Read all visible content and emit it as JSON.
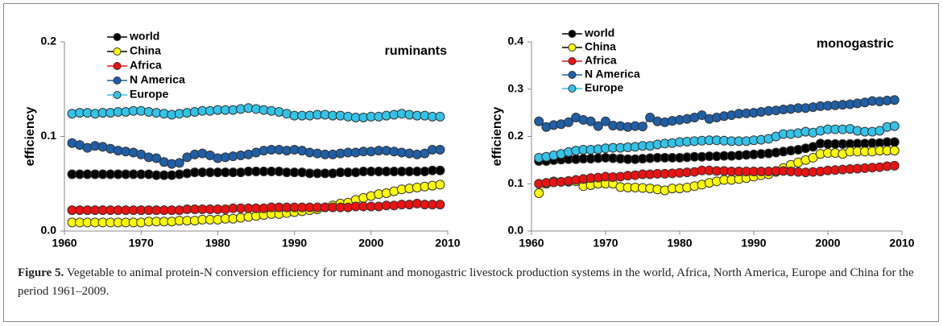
{
  "chart_data": [
    {
      "type": "line",
      "title": "ruminants",
      "ylabel": "efficiency",
      "x": [
        1961,
        1962,
        1963,
        1964,
        1965,
        1966,
        1967,
        1968,
        1969,
        1970,
        1971,
        1972,
        1973,
        1974,
        1975,
        1976,
        1977,
        1978,
        1979,
        1980,
        1981,
        1982,
        1983,
        1984,
        1985,
        1986,
        1987,
        1988,
        1989,
        1990,
        1991,
        1992,
        1993,
        1994,
        1995,
        1996,
        1997,
        1998,
        1999,
        2000,
        2001,
        2002,
        2003,
        2004,
        2005,
        2006,
        2007,
        2008,
        2009
      ],
      "xlim": [
        1960,
        2010
      ],
      "xticks": [
        1960,
        1970,
        1980,
        1990,
        2000,
        2010
      ],
      "ylim": [
        0,
        0.2
      ],
      "yticks": [
        {
          "value": 0,
          "label": "0.0"
        },
        {
          "value": 0.1,
          "label": "0.1"
        },
        {
          "value": 0.2,
          "label": "0.2"
        }
      ],
      "legend": "upper left",
      "series": [
        {
          "name": "world",
          "color": "#000000",
          "values": [
            0.06,
            0.06,
            0.06,
            0.06,
            0.06,
            0.06,
            0.06,
            0.06,
            0.06,
            0.06,
            0.06,
            0.059,
            0.059,
            0.059,
            0.06,
            0.061,
            0.062,
            0.062,
            0.062,
            0.062,
            0.062,
            0.062,
            0.062,
            0.063,
            0.063,
            0.063,
            0.063,
            0.063,
            0.062,
            0.062,
            0.062,
            0.061,
            0.061,
            0.061,
            0.061,
            0.062,
            0.062,
            0.062,
            0.063,
            0.063,
            0.063,
            0.063,
            0.063,
            0.063,
            0.063,
            0.063,
            0.063,
            0.064,
            0.064
          ]
        },
        {
          "name": "China",
          "color": "#ffff00",
          "values": [
            0.009,
            0.009,
            0.009,
            0.009,
            0.009,
            0.009,
            0.009,
            0.009,
            0.009,
            0.009,
            0.01,
            0.01,
            0.01,
            0.01,
            0.011,
            0.011,
            0.011,
            0.012,
            0.012,
            0.012,
            0.013,
            0.013,
            0.014,
            0.015,
            0.016,
            0.017,
            0.018,
            0.018,
            0.019,
            0.02,
            0.021,
            0.022,
            0.023,
            0.025,
            0.027,
            0.029,
            0.03,
            0.033,
            0.035,
            0.037,
            0.039,
            0.04,
            0.042,
            0.044,
            0.045,
            0.046,
            0.047,
            0.048,
            0.049
          ]
        },
        {
          "name": "Africa",
          "color": "#ee1111",
          "values": [
            0.022,
            0.022,
            0.022,
            0.022,
            0.022,
            0.022,
            0.022,
            0.022,
            0.022,
            0.022,
            0.022,
            0.022,
            0.022,
            0.022,
            0.022,
            0.023,
            0.023,
            0.023,
            0.023,
            0.023,
            0.023,
            0.024,
            0.024,
            0.024,
            0.024,
            0.024,
            0.025,
            0.025,
            0.025,
            0.025,
            0.025,
            0.025,
            0.025,
            0.025,
            0.025,
            0.025,
            0.025,
            0.026,
            0.026,
            0.026,
            0.026,
            0.027,
            0.027,
            0.028,
            0.028,
            0.029,
            0.028,
            0.028,
            0.028
          ]
        },
        {
          "name": "N America",
          "color": "#1f5fa8",
          "values": [
            0.093,
            0.091,
            0.088,
            0.09,
            0.089,
            0.087,
            0.085,
            0.084,
            0.083,
            0.081,
            0.078,
            0.077,
            0.073,
            0.071,
            0.072,
            0.078,
            0.081,
            0.082,
            0.08,
            0.077,
            0.078,
            0.079,
            0.08,
            0.081,
            0.083,
            0.085,
            0.086,
            0.086,
            0.085,
            0.086,
            0.085,
            0.083,
            0.082,
            0.081,
            0.081,
            0.082,
            0.083,
            0.083,
            0.084,
            0.084,
            0.085,
            0.085,
            0.084,
            0.083,
            0.082,
            0.081,
            0.082,
            0.086,
            0.086
          ]
        },
        {
          "name": "Europe",
          "color": "#33c3e8",
          "values": [
            0.124,
            0.125,
            0.125,
            0.124,
            0.125,
            0.125,
            0.126,
            0.126,
            0.127,
            0.127,
            0.126,
            0.125,
            0.124,
            0.123,
            0.124,
            0.125,
            0.126,
            0.127,
            0.127,
            0.128,
            0.128,
            0.128,
            0.129,
            0.13,
            0.129,
            0.128,
            0.127,
            0.126,
            0.124,
            0.122,
            0.122,
            0.122,
            0.123,
            0.123,
            0.122,
            0.122,
            0.121,
            0.12,
            0.12,
            0.121,
            0.121,
            0.122,
            0.123,
            0.124,
            0.123,
            0.122,
            0.122,
            0.121,
            0.121
          ]
        }
      ]
    },
    {
      "type": "line",
      "title": "monogastric",
      "ylabel": "efficiency",
      "x": [
        1961,
        1962,
        1963,
        1964,
        1965,
        1966,
        1967,
        1968,
        1969,
        1970,
        1971,
        1972,
        1973,
        1974,
        1975,
        1976,
        1977,
        1978,
        1979,
        1980,
        1981,
        1982,
        1983,
        1984,
        1985,
        1986,
        1987,
        1988,
        1989,
        1990,
        1991,
        1992,
        1993,
        1994,
        1995,
        1996,
        1997,
        1998,
        1999,
        2000,
        2001,
        2002,
        2003,
        2004,
        2005,
        2006,
        2007,
        2008,
        2009
      ],
      "xlim": [
        1960,
        2010
      ],
      "xticks": [
        1960,
        1970,
        1980,
        1990,
        2000,
        2010
      ],
      "ylim": [
        0,
        0.4
      ],
      "yticks": [
        {
          "value": 0,
          "label": "0.0"
        },
        {
          "value": 0.1,
          "label": "0.1"
        },
        {
          "value": 0.2,
          "label": "0.2"
        },
        {
          "value": 0.3,
          "label": "0.3"
        },
        {
          "value": 0.4,
          "label": "0.4"
        }
      ],
      "legend": "upper left",
      "series": [
        {
          "name": "world",
          "color": "#000000",
          "values": [
            0.148,
            0.148,
            0.15,
            0.151,
            0.152,
            0.152,
            0.153,
            0.153,
            0.154,
            0.155,
            0.154,
            0.153,
            0.152,
            0.152,
            0.153,
            0.154,
            0.155,
            0.155,
            0.155,
            0.155,
            0.156,
            0.157,
            0.157,
            0.158,
            0.158,
            0.159,
            0.159,
            0.16,
            0.161,
            0.162,
            0.163,
            0.164,
            0.166,
            0.168,
            0.17,
            0.172,
            0.175,
            0.178,
            0.185,
            0.184,
            0.184,
            0.184,
            0.184,
            0.185,
            0.185,
            0.186,
            0.186,
            0.188,
            0.188
          ]
        },
        {
          "name": "China",
          "color": "#ffff00",
          "values": [
            0.08,
            0.1,
            0.105,
            0.104,
            0.104,
            0.105,
            0.095,
            0.097,
            0.1,
            0.1,
            0.1,
            0.093,
            0.092,
            0.092,
            0.091,
            0.09,
            0.088,
            0.086,
            0.09,
            0.09,
            0.092,
            0.095,
            0.098,
            0.102,
            0.105,
            0.108,
            0.108,
            0.11,
            0.112,
            0.115,
            0.118,
            0.12,
            0.125,
            0.133,
            0.14,
            0.145,
            0.15,
            0.155,
            0.163,
            0.165,
            0.165,
            0.163,
            0.168,
            0.168,
            0.168,
            0.168,
            0.17,
            0.17,
            0.17
          ]
        },
        {
          "name": "Africa",
          "color": "#ee1111",
          "values": [
            0.1,
            0.102,
            0.103,
            0.104,
            0.106,
            0.108,
            0.11,
            0.112,
            0.113,
            0.115,
            0.114,
            0.115,
            0.117,
            0.118,
            0.12,
            0.12,
            0.121,
            0.121,
            0.122,
            0.123,
            0.124,
            0.125,
            0.128,
            0.128,
            0.127,
            0.127,
            0.126,
            0.126,
            0.126,
            0.126,
            0.126,
            0.126,
            0.127,
            0.127,
            0.126,
            0.125,
            0.124,
            0.125,
            0.126,
            0.128,
            0.129,
            0.13,
            0.131,
            0.132,
            0.133,
            0.134,
            0.135,
            0.137,
            0.138
          ]
        },
        {
          "name": "N America",
          "color": "#1f5fa8",
          "values": [
            0.232,
            0.22,
            0.224,
            0.226,
            0.23,
            0.24,
            0.235,
            0.232,
            0.222,
            0.232,
            0.223,
            0.222,
            0.22,
            0.222,
            0.221,
            0.24,
            0.232,
            0.23,
            0.233,
            0.235,
            0.237,
            0.24,
            0.245,
            0.237,
            0.24,
            0.243,
            0.245,
            0.248,
            0.249,
            0.25,
            0.252,
            0.254,
            0.255,
            0.257,
            0.258,
            0.26,
            0.26,
            0.262,
            0.264,
            0.265,
            0.266,
            0.267,
            0.268,
            0.27,
            0.272,
            0.275,
            0.274,
            0.276,
            0.277
          ]
        },
        {
          "name": "Europe",
          "color": "#33c3e8",
          "values": [
            0.155,
            0.157,
            0.16,
            0.163,
            0.167,
            0.17,
            0.172,
            0.172,
            0.173,
            0.175,
            0.176,
            0.176,
            0.177,
            0.178,
            0.18,
            0.18,
            0.183,
            0.185,
            0.186,
            0.188,
            0.189,
            0.19,
            0.191,
            0.192,
            0.192,
            0.191,
            0.19,
            0.19,
            0.19,
            0.192,
            0.193,
            0.195,
            0.2,
            0.205,
            0.205,
            0.207,
            0.21,
            0.208,
            0.212,
            0.215,
            0.215,
            0.215,
            0.216,
            0.212,
            0.21,
            0.21,
            0.212,
            0.22,
            0.222
          ]
        }
      ]
    }
  ],
  "caption": {
    "label": "Figure 5.",
    "text": "Vegetable to animal protein-N conversion efficiency for ruminant and monogastric livestock production systems in the world, Africa, North America, Europe and China for the period 1961–2009."
  }
}
